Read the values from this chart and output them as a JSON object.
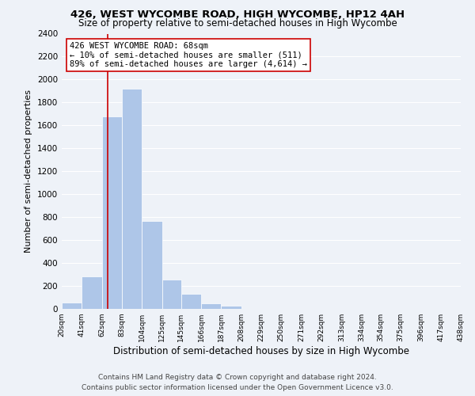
{
  "title": "426, WEST WYCOMBE ROAD, HIGH WYCOMBE, HP12 4AH",
  "subtitle": "Size of property relative to semi-detached houses in High Wycombe",
  "xlabel": "Distribution of semi-detached houses by size in High Wycombe",
  "ylabel": "Number of semi-detached properties",
  "bin_edges": [
    20,
    41,
    62,
    83,
    104,
    125,
    145,
    166,
    187,
    208,
    229,
    250,
    271,
    292,
    313,
    334,
    354,
    375,
    396,
    417,
    438
  ],
  "bin_heights": [
    55,
    280,
    1680,
    1920,
    770,
    255,
    130,
    45,
    25,
    0,
    0,
    0,
    0,
    0,
    0,
    0,
    0,
    0,
    0,
    0
  ],
  "bar_color": "#aec6e8",
  "vline_x": 68,
  "vline_color": "#cc0000",
  "annotation_line1": "426 WEST WYCOMBE ROAD: 68sqm",
  "annotation_line2": "← 10% of semi-detached houses are smaller (511)",
  "annotation_line3": "89% of semi-detached houses are larger (4,614) →",
  "annotation_box_edge": "#cc0000",
  "annotation_box_facecolor": "#ffffff",
  "ylim": [
    0,
    2400
  ],
  "yticks": [
    0,
    200,
    400,
    600,
    800,
    1000,
    1200,
    1400,
    1600,
    1800,
    2000,
    2200,
    2400
  ],
  "tick_labels": [
    "20sqm",
    "41sqm",
    "62sqm",
    "83sqm",
    "104sqm",
    "125sqm",
    "145sqm",
    "166sqm",
    "187sqm",
    "208sqm",
    "229sqm",
    "250sqm",
    "271sqm",
    "292sqm",
    "313sqm",
    "334sqm",
    "354sqm",
    "375sqm",
    "396sqm",
    "417sqm",
    "438sqm"
  ],
  "footer_line1": "Contains HM Land Registry data © Crown copyright and database right 2024.",
  "footer_line2": "Contains public sector information licensed under the Open Government Licence v3.0.",
  "background_color": "#eef2f8",
  "title_fontsize": 9.5,
  "subtitle_fontsize": 8.5,
  "xlabel_fontsize": 8.5,
  "ylabel_fontsize": 8,
  "annotation_fontsize": 7.5,
  "footer_fontsize": 6.5,
  "ytick_fontsize": 7.5,
  "xtick_fontsize": 6.5
}
